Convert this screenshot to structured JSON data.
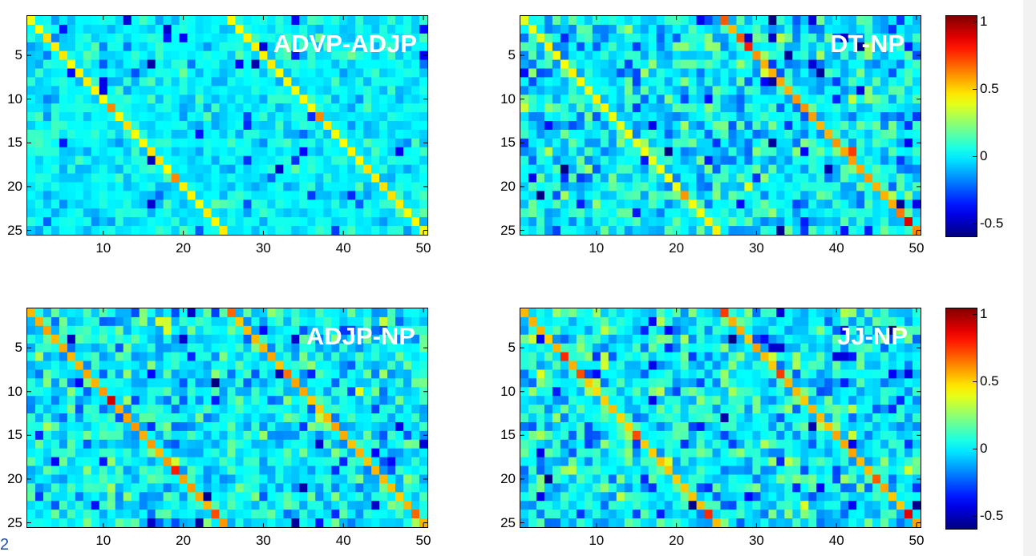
{
  "chart_data": [
    {
      "type": "heatmap",
      "title": "ADVP-ADJP",
      "rows": 25,
      "cols": 50,
      "xticks": [
        10,
        20,
        30,
        40,
        50
      ],
      "yticks": [
        5,
        10,
        15,
        20,
        25
      ],
      "clim": [
        -0.6,
        1.05
      ],
      "noise_std": 0.07,
      "diagonals": [
        {
          "row_start": 1,
          "col_start": 1,
          "length": 25,
          "value": 0.45
        },
        {
          "row_start": 1,
          "col_start": 26,
          "length": 25,
          "value": 0.45
        }
      ],
      "highlights": [
        {
          "row": 11,
          "col": 11,
          "value": 0.62
        },
        {
          "row": 19,
          "col": 19,
          "value": 0.62
        },
        {
          "row": 12,
          "col": 37,
          "value": 0.62
        }
      ]
    },
    {
      "type": "heatmap",
      "title": "DT-NP",
      "rows": 25,
      "cols": 50,
      "xticks": [
        10,
        20,
        30,
        40,
        50
      ],
      "yticks": [
        5,
        10,
        15,
        20,
        25
      ],
      "clim": [
        -0.6,
        1.05
      ],
      "noise_std": 0.13,
      "diagonals": [
        {
          "row_start": 1,
          "col_start": 1,
          "length": 25,
          "value": 0.42
        },
        {
          "row_start": 1,
          "col_start": 26,
          "length": 25,
          "value": 0.58
        }
      ],
      "highlights": [
        {
          "row": 1,
          "col": 26,
          "value": 0.7
        },
        {
          "row": 3,
          "col": 28,
          "value": 0.7
        },
        {
          "row": 3,
          "col": 29,
          "value": -0.45
        },
        {
          "row": 4,
          "col": 29,
          "value": 0.8
        },
        {
          "row": 16,
          "col": 42,
          "value": 0.75
        },
        {
          "row": 23,
          "col": 48,
          "value": 0.65
        },
        {
          "row": 24,
          "col": 49,
          "value": 0.9
        },
        {
          "row": 21,
          "col": 21,
          "value": 0.6
        }
      ]
    },
    {
      "type": "heatmap",
      "title": "ADJP-NP",
      "rows": 25,
      "cols": 50,
      "xticks": [
        10,
        20,
        30,
        40,
        50
      ],
      "yticks": [
        5,
        10,
        15,
        20,
        25
      ],
      "clim": [
        -0.6,
        1.05
      ],
      "noise_std": 0.12,
      "diagonals": [
        {
          "row_start": 1,
          "col_start": 1,
          "length": 25,
          "value": 0.58
        },
        {
          "row_start": 1,
          "col_start": 26,
          "length": 25,
          "value": 0.55
        }
      ],
      "highlights": [
        {
          "row": 11,
          "col": 11,
          "value": 0.92
        },
        {
          "row": 19,
          "col": 19,
          "value": 0.8
        },
        {
          "row": 24,
          "col": 24,
          "value": 0.72
        },
        {
          "row": 1,
          "col": 26,
          "value": 0.68
        },
        {
          "row": 8,
          "col": 33,
          "value": 0.66
        },
        {
          "row": 24,
          "col": 49,
          "value": 0.68
        }
      ]
    },
    {
      "type": "heatmap",
      "title": "JJ-NP",
      "rows": 25,
      "cols": 50,
      "xticks": [
        10,
        20,
        30,
        40,
        50
      ],
      "yticks": [
        5,
        10,
        15,
        20,
        25
      ],
      "clim": [
        -0.6,
        1.05
      ],
      "noise_std": 0.13,
      "diagonals": [
        {
          "row_start": 1,
          "col_start": 1,
          "length": 25,
          "value": 0.52
        },
        {
          "row_start": 1,
          "col_start": 26,
          "length": 25,
          "value": 0.55
        }
      ],
      "highlights": [
        {
          "row": 6,
          "col": 6,
          "value": 0.78
        },
        {
          "row": 8,
          "col": 8,
          "value": 0.72
        },
        {
          "row": 15,
          "col": 15,
          "value": 0.72
        },
        {
          "row": 24,
          "col": 24,
          "value": 0.78
        },
        {
          "row": 1,
          "col": 26,
          "value": 0.75
        },
        {
          "row": 8,
          "col": 33,
          "value": 0.75
        },
        {
          "row": 20,
          "col": 45,
          "value": 0.7
        },
        {
          "row": 24,
          "col": 49,
          "value": 0.9
        }
      ]
    }
  ],
  "colorbar": {
    "ticks": [
      1,
      0.5,
      0,
      -0.5
    ],
    "tick_labels": [
      "1",
      "0.5",
      "0",
      "-0.5"
    ],
    "range": [
      -0.6,
      1.05
    ],
    "colormap": "jet"
  },
  "slide_number": "2"
}
